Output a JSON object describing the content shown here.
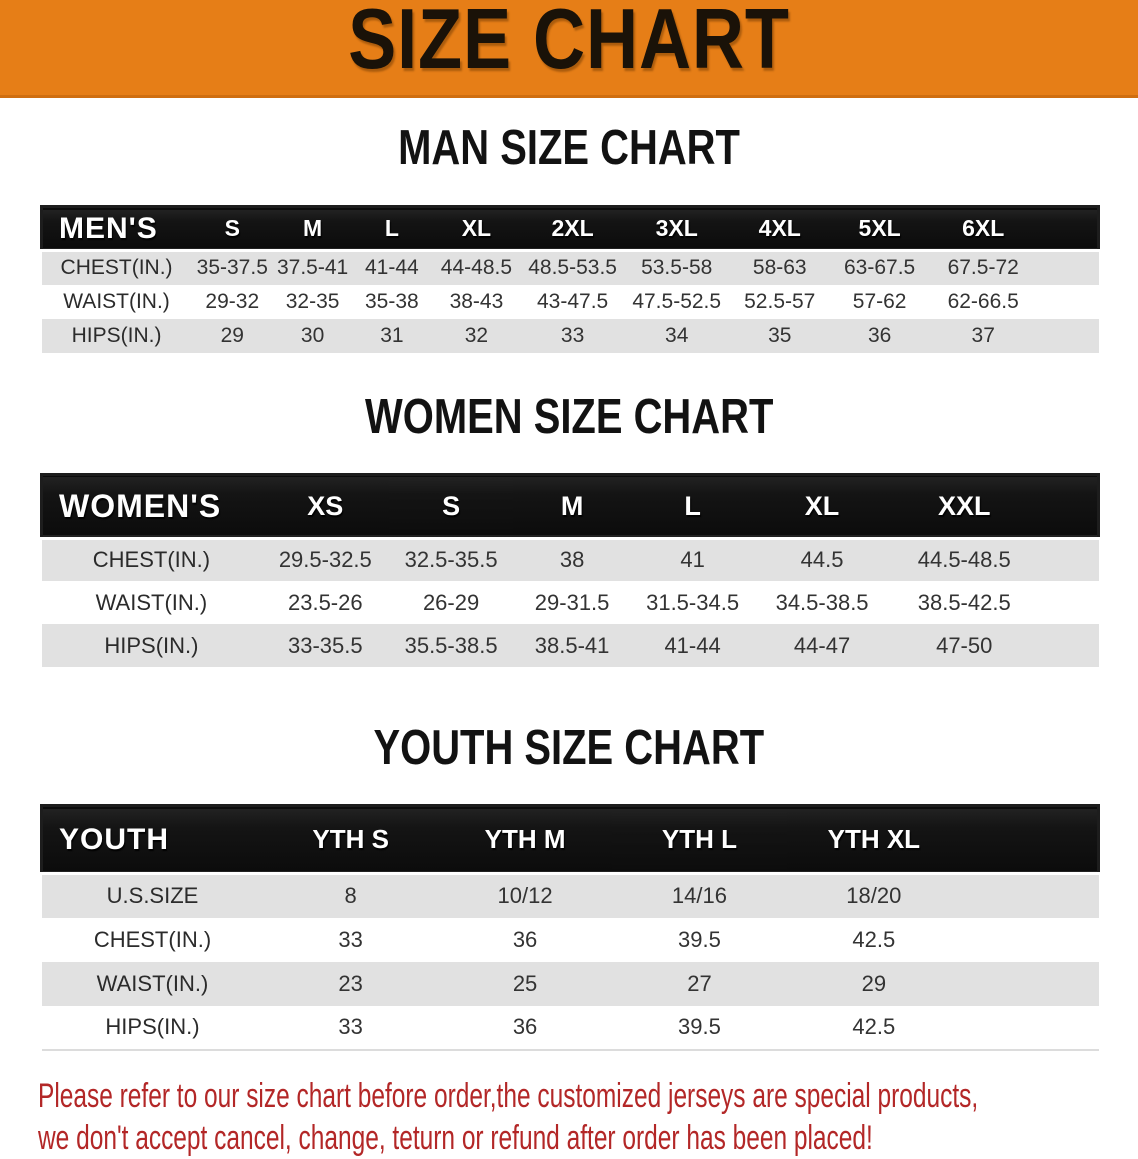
{
  "banner": {
    "title": "SIZE CHART"
  },
  "sections": [
    {
      "heading": "MAN SIZE CHART",
      "label": "MEN'S",
      "columns": [
        "S",
        "M",
        "L",
        "XL",
        "2XL",
        "3XL",
        "4XL",
        "5XL",
        "6XL"
      ],
      "rows": [
        {
          "label": "CHEST(IN.)",
          "values": [
            "35-37.5",
            "37.5-41",
            "41-44",
            "44-48.5",
            "48.5-53.5",
            "53.5-58",
            "58-63",
            "63-67.5",
            "67.5-72"
          ]
        },
        {
          "label": "WAIST(IN.)",
          "values": [
            "29-32",
            "32-35",
            "35-38",
            "38-43",
            "43-47.5",
            "47.5-52.5",
            "52.5-57",
            "57-62",
            "62-66.5"
          ]
        },
        {
          "label": "HIPS(IN.)",
          "values": [
            "29",
            "30",
            "31",
            "32",
            "33",
            "34",
            "35",
            "36",
            "37"
          ]
        }
      ]
    },
    {
      "heading": "WOMEN SIZE CHART",
      "label": "WOMEN'S",
      "columns": [
        "XS",
        "S",
        "M",
        "L",
        "XL",
        "XXL"
      ],
      "rows": [
        {
          "label": "CHEST(IN.)",
          "values": [
            "29.5-32.5",
            "32.5-35.5",
            "38",
            "41",
            "44.5",
            "44.5-48.5"
          ]
        },
        {
          "label": "WAIST(IN.)",
          "values": [
            "23.5-26",
            "26-29",
            "29-31.5",
            "31.5-34.5",
            "34.5-38.5",
            "38.5-42.5"
          ]
        },
        {
          "label": "HIPS(IN.)",
          "values": [
            "33-35.5",
            "35.5-38.5",
            "38.5-41",
            "41-44",
            "44-47",
            "47-50"
          ]
        }
      ]
    },
    {
      "heading": "YOUTH SIZE CHART",
      "label": "YOUTH",
      "columns": [
        "YTH S",
        "YTH M",
        "YTH L",
        "YTH XL"
      ],
      "rows": [
        {
          "label": "U.S.SIZE",
          "values": [
            "8",
            "10/12",
            "14/16",
            "18/20"
          ]
        },
        {
          "label": "CHEST(IN.)",
          "values": [
            "33",
            "36",
            "39.5",
            "42.5"
          ]
        },
        {
          "label": "WAIST(IN.)",
          "values": [
            "23",
            "25",
            "27",
            "29"
          ]
        },
        {
          "label": "HIPS(IN.)",
          "values": [
            "33",
            "36",
            "39.5",
            "42.5"
          ]
        }
      ]
    }
  ],
  "footer": {
    "line1": "Please refer to our size chart before order,the customized jerseys are special products,",
    "line2": "we don't accept cancel, change, teturn or refund after order has been placed!"
  },
  "colors": {
    "banner_bg": "#E67E17",
    "header_bar_bg": "#141414",
    "row_stripe": "#E1E1E1",
    "notice_text": "#B32727"
  }
}
